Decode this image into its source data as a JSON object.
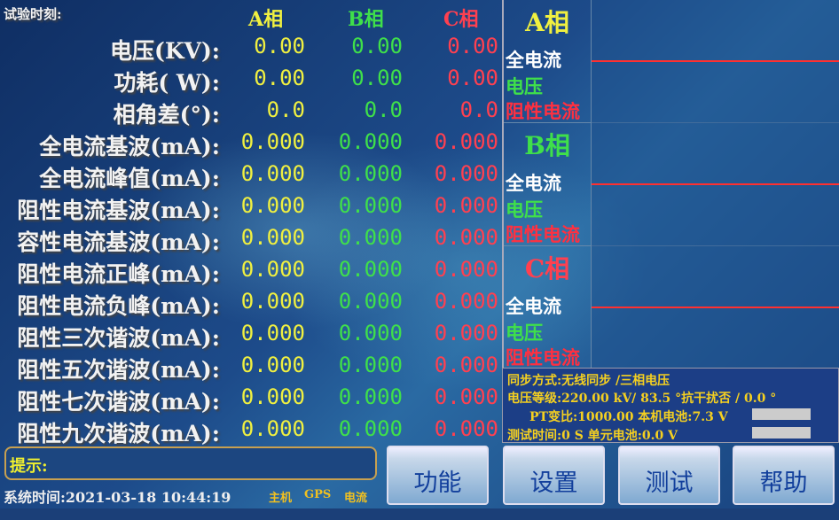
{
  "header": {
    "test_time_label": "试验时刻:",
    "phase_a": "A相",
    "phase_b": "B相",
    "phase_c": "C相"
  },
  "rows": [
    {
      "label": "电压(KV):",
      "a": "0.00",
      "b": "0.00",
      "c": "0.00"
    },
    {
      "label": "功耗( W):",
      "a": "0.00",
      "b": "0.00",
      "c": "0.00"
    },
    {
      "label": "相角差(°):",
      "a": "0.0",
      "b": "0.0",
      "c": "0.0"
    },
    {
      "label": "全电流基波(mA):",
      "a": "0.000",
      "b": "0.000",
      "c": "0.000"
    },
    {
      "label": "全电流峰值(mA):",
      "a": "0.000",
      "b": "0.000",
      "c": "0.000"
    },
    {
      "label": "阻性电流基波(mA):",
      "a": "0.000",
      "b": "0.000",
      "c": "0.000"
    },
    {
      "label": "容性电流基波(mA):",
      "a": "0.000",
      "b": "0.000",
      "c": "0.000"
    },
    {
      "label": "阻性电流正峰(mA):",
      "a": "0.000",
      "b": "0.000",
      "c": "0.000"
    },
    {
      "label": "阻性电流负峰(mA):",
      "a": "0.000",
      "b": "0.000",
      "c": "0.000"
    },
    {
      "label": "阻性三次谐波(mA):",
      "a": "0.000",
      "b": "0.000",
      "c": "0.000"
    },
    {
      "label": "阻性五次谐波(mA):",
      "a": "0.000",
      "b": "0.000",
      "c": "0.000"
    },
    {
      "label": "阻性七次谐波(mA):",
      "a": "0.000",
      "b": "0.000",
      "c": "0.000"
    },
    {
      "label": "阻性九次谐波(mA):",
      "a": "0.000",
      "b": "0.000",
      "c": "0.000"
    }
  ],
  "waves": [
    {
      "title": "A相",
      "color": "#f0f040",
      "total": "全电流",
      "voltage": "电压",
      "resistive": "阻性电流"
    },
    {
      "title": "B相",
      "color": "#3fe04a",
      "total": "全电流",
      "voltage": "电压",
      "resistive": "阻性电流"
    },
    {
      "title": "C相",
      "color": "#ff4050",
      "total": "全电流",
      "voltage": "电压",
      "resistive": "阻性电流"
    }
  ],
  "info": {
    "sync": "同步方式:无线同步 /三相电压",
    "voltage_level": "电压等级:220.00 kV/ 83.5 °抗干扰否  /  0.0 °",
    "pt_ratio": "PT变比:1000.00  本机电池:7.3 V",
    "test_duration": "测试时间:0       S 单元电池:0.0 V"
  },
  "hint_label": "提示:",
  "system_time": "系统时间:2021-03-18 10:44:19",
  "status": {
    "host": "主机",
    "gps": "GPS",
    "current": "电流"
  },
  "buttons": {
    "function": "功能",
    "settings": "设置",
    "test": "测试",
    "help": "帮助"
  }
}
